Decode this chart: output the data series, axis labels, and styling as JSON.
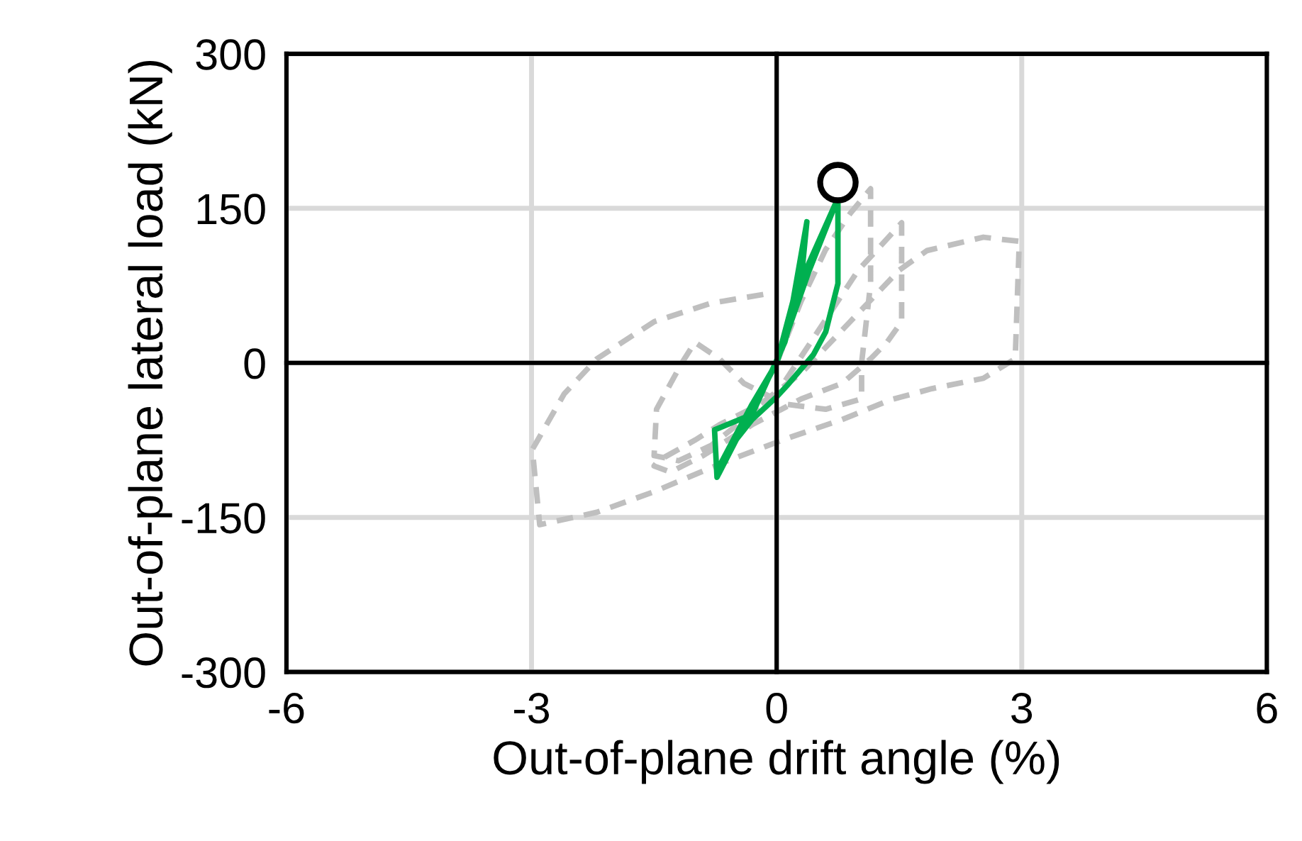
{
  "chart_data": {
    "type": "line",
    "xlabel": "Out-of-plane drift angle (%)",
    "ylabel": "Out-of-plane lateral load (kN)",
    "xlim": [
      -6,
      6
    ],
    "ylim": [
      -300,
      300
    ],
    "xticks": [
      -6,
      -3,
      0,
      3,
      6
    ],
    "yticks": [
      -300,
      -150,
      0,
      150,
      300
    ],
    "grid": true,
    "series": [
      {
        "type": "line",
        "color": "#bfbfbf",
        "line_style": "dashed",
        "x": [
          0,
          0.3,
          0.6,
          0.9,
          1.15,
          1.15,
          1.04,
          1.04,
          0.6,
          0.1,
          -0.4,
          -0.7,
          -1.0,
          -1.16,
          -1.47,
          -1.5,
          -1.2,
          -0.8,
          -0.4,
          0,
          0.5,
          1.0,
          1.53,
          1.53,
          1.35,
          1.15,
          0.8,
          0.3,
          -0.3,
          -0.9,
          -1.3,
          -1.5,
          -1.45,
          -1.0,
          -0.7,
          -0.2,
          0.3,
          0.9,
          1.5,
          1.84,
          2.53,
          2.97,
          2.92,
          2.53,
          1.9,
          1.39,
          0.8,
          0.1,
          -0.6,
          -1.5,
          -2.2,
          -2.9,
          -2.99,
          -2.6,
          -2.2,
          -1.5,
          -0.8,
          -0.12
        ],
        "values": [
          0,
          60,
          110,
          145,
          169,
          77,
          0,
          -35,
          -45,
          -40,
          -20,
          4,
          20,
          0,
          -45,
          -90,
          -95,
          -80,
          -55,
          -30,
          30,
          90,
          136,
          40,
          20,
          4,
          -20,
          -35,
          -60,
          -90,
          -106,
          -100,
          -95,
          -75,
          -60,
          -40,
          -10,
          40,
          90,
          109,
          122,
          118,
          4,
          -15,
          -25,
          -36,
          -55,
          -74,
          -95,
          -125,
          -145,
          -157,
          -84,
          -30,
          4,
          40,
          58,
          67
        ]
      },
      {
        "type": "line",
        "color": "#00b050",
        "line_style": "solid",
        "x": [
          0,
          0.2,
          0.37,
          0.3,
          0.1,
          -0.3,
          -0.76,
          -0.73,
          -0.4,
          0,
          0.4,
          0.75,
          0.75,
          0.75,
          0.6,
          0.45,
          0.15,
          0,
          -0.3,
          -0.6,
          -0.7,
          -0.3,
          0,
          0.3,
          0.75
        ],
        "values": [
          0,
          60,
          137,
          80,
          20,
          -50,
          -65,
          -111,
          -60,
          0,
          90,
          160,
          132,
          77,
          30,
          8,
          -20,
          -33,
          -55,
          -85,
          -100,
          -40,
          0,
          80,
          160
        ]
      },
      {
        "type": "scatter",
        "color": "#000000",
        "marker": "circle",
        "x": [
          0.75
        ],
        "values": [
          175
        ]
      }
    ]
  }
}
